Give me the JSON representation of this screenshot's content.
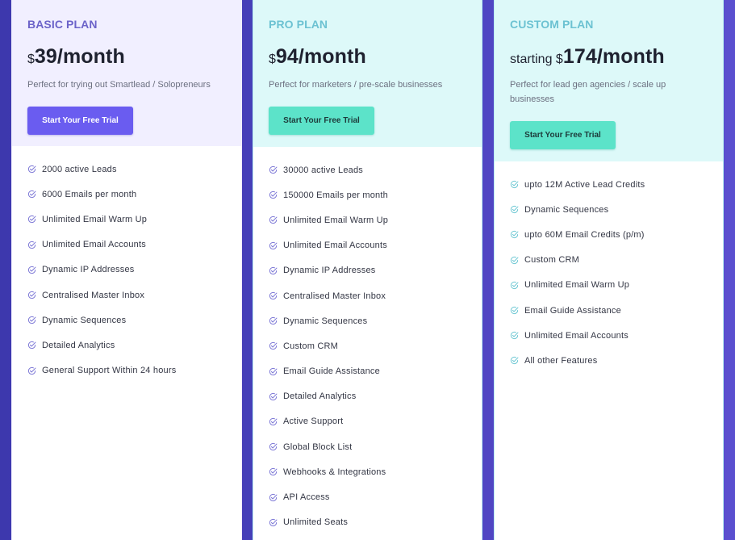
{
  "plans": [
    {
      "id": "basic",
      "name": "BASIC PLAN",
      "price_prefix": "$",
      "price": "39/month",
      "description": "Perfect for trying out Smartlead / Solopreneurs",
      "cta_label": "Start Your Free Trial",
      "check_icon_color": "#7d78d6",
      "features": [
        "2000 active Leads",
        "6000 Emails per month",
        "Unlimited Email Warm Up",
        "Unlimited Email Accounts",
        "Dynamic IP Addresses",
        "Centralised Master Inbox",
        "Dynamic Sequences",
        "Detailed Analytics",
        "General Support Within 24 hours"
      ]
    },
    {
      "id": "pro",
      "name": "PRO PLAN",
      "price_prefix": "$",
      "price": "94/month",
      "description": "Perfect for marketers / pre-scale businesses",
      "cta_label": "Start Your Free Trial",
      "check_icon_color": "#7d78d6",
      "features": [
        "30000 active Leads",
        "150000 Emails per month",
        "Unlimited Email Warm Up",
        "Unlimited Email Accounts",
        "Dynamic IP Addresses",
        "Centralised Master Inbox",
        "Dynamic Sequences",
        "Custom CRM",
        "Email Guide Assistance",
        "Detailed Analytics",
        "Active Support",
        "Global Block List",
        "Webhooks & Integrations",
        "API Access",
        "Unlimited Seats"
      ]
    },
    {
      "id": "custom",
      "name": "CUSTOM PLAN",
      "price_prefix": "starting $",
      "price": "174/month",
      "description": "Perfect for lead gen agencies / scale up businesses",
      "cta_label": "Start Your Free Trial",
      "check_icon_color": "#6cc7d3",
      "features": [
        "upto 12M Active Lead Credits",
        "Dynamic Sequences",
        "upto 60M Email Credits (p/m)",
        "Custom CRM",
        "Unlimited Email Warm Up",
        "Email Guide Assistance",
        "Unlimited Email Accounts",
        "All other Features"
      ]
    }
  ],
  "colors": {
    "background_start": "#3d38ad",
    "background_end": "#5a4fcf",
    "basic_accent": "#6a5cf0",
    "pro_accent": "#5ce3c9",
    "basic_header_bg": "#f1efff",
    "pro_header_bg": "#ddf9f9"
  }
}
